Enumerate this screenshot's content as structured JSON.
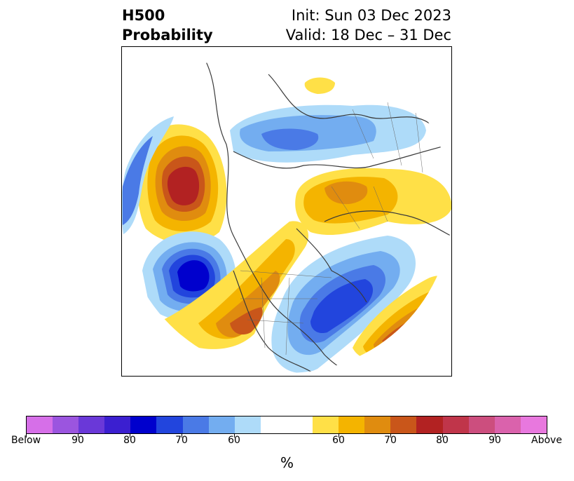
{
  "title": {
    "left_line1": "H500",
    "left_line2": "Probability",
    "right_line1": "Init: Sun 03 Dec 2023",
    "right_line2": "Valid: 18 Dec – 31 Dec"
  },
  "colorbar": {
    "colors": [
      "#d66fe8",
      "#9b55df",
      "#6a38d8",
      "#3b1fd0",
      "#0000cd",
      "#2245dd",
      "#4a7ae6",
      "#73adf0",
      "#aedbf9",
      "#ffffff",
      "#ffffff",
      "#ffe047",
      "#f4b400",
      "#e08c0f",
      "#c9561a",
      "#b22222",
      "#c0354a",
      "#cc4e7e",
      "#da62ac",
      "#e878de"
    ],
    "tick_labels": [
      "Below",
      "90",
      "80",
      "70",
      "60",
      "60",
      "70",
      "80",
      "90",
      "Above"
    ],
    "unit": "%"
  }
}
